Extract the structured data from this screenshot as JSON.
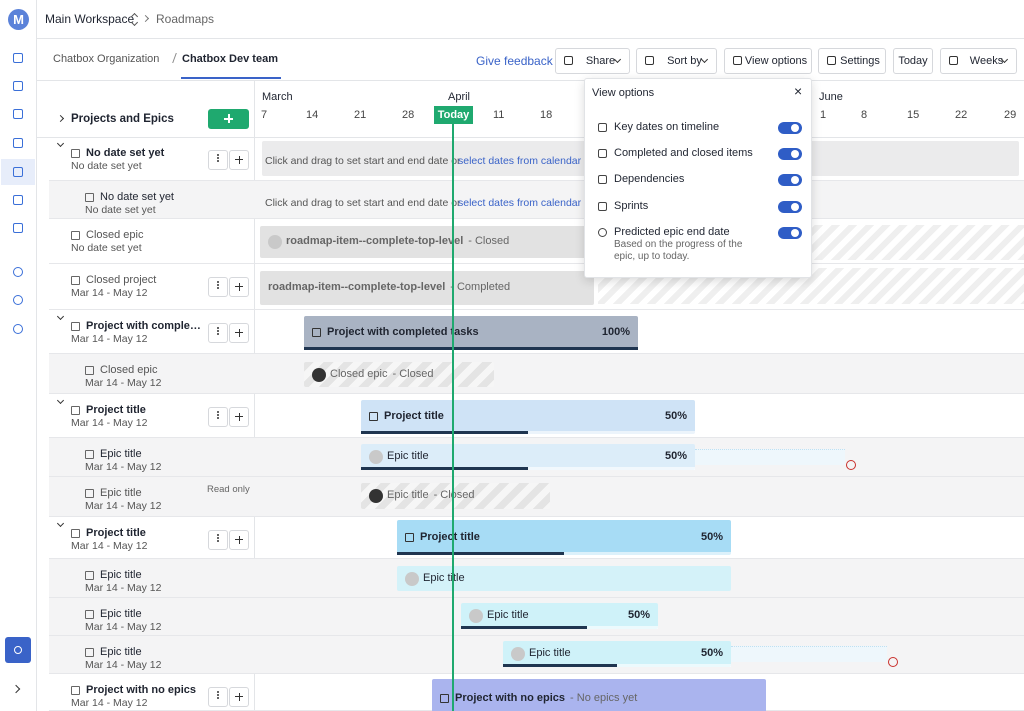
{
  "breadcrumb": {
    "workspace": "Main Workspace",
    "page": "Roadmaps"
  },
  "logo": "M",
  "tabs": [
    "Chatbox Organization",
    "Chatbox Dev team"
  ],
  "toolbar": {
    "feedback": "Give feedback",
    "share": "Share",
    "sort": "Sort by",
    "view_options": "View options",
    "settings": "Settings",
    "today": "Today",
    "weeks": "Weeks"
  },
  "tree_header": "Projects and Epics",
  "timeline": {
    "months": [
      "March",
      "April",
      "June"
    ],
    "days": [
      "7",
      "14",
      "21",
      "28",
      "11",
      "18",
      "1",
      "8",
      "15",
      "22",
      "29"
    ],
    "today": "Today"
  },
  "placeholder": {
    "text": "Click and drag to set start and end date or",
    "link": "select dates from calendar"
  },
  "rows": [
    {
      "title": "No date set yet",
      "dates": "No date set yet"
    },
    {
      "title": "No date set yet",
      "dates": "No date set yet"
    },
    {
      "title": "Closed epic",
      "dates": "No date set yet",
      "bar": "roadmap-item--complete-top-level",
      "suffix": "- Closed"
    },
    {
      "title": "Closed project",
      "dates": "Mar 14 - May 12",
      "bar": "roadmap-item--complete-top-level",
      "suffix": "- Completed"
    },
    {
      "title": "Project with comple…",
      "dates": "Mar 14 - May 12",
      "bar": "Project with completed tasks",
      "percent": "100%"
    },
    {
      "title": "Closed epic",
      "dates": "Mar 14 - May 12",
      "bar": "Closed epic",
      "suffix": "- Closed"
    },
    {
      "title": "Project title",
      "dates": "Mar 14 - May 12",
      "bar": "Project title",
      "percent": "50%"
    },
    {
      "title": "Epic title",
      "dates": "Mar 14 - May 12",
      "bar": "Epic title",
      "percent": "50%"
    },
    {
      "title": "Epic title",
      "dates": "Mar 14 - May 12",
      "note": "Read only",
      "bar": "Epic title",
      "suffix": "- Closed"
    },
    {
      "title": "Project title",
      "dates": "Mar 14 - May 12",
      "bar": "Project title",
      "percent": "50%"
    },
    {
      "title": "Epic title",
      "dates": "Mar 14 - May 12",
      "bar": "Epic title"
    },
    {
      "title": "Epic title",
      "dates": "Mar 14 - May 12",
      "bar": "Epic title",
      "percent": "50%"
    },
    {
      "title": "Epic title",
      "dates": "Mar 14 - May 12",
      "bar": "Epic title",
      "percent": "50%"
    },
    {
      "title": "Project with no epics",
      "dates": "Mar 14 - May 12",
      "bar": "Project with no epics",
      "suffix": "- No epics yet"
    }
  ],
  "view_options": {
    "title": "View options",
    "close": "×",
    "items": [
      {
        "label": "Key dates on timeline"
      },
      {
        "label": "Completed and closed items"
      },
      {
        "label": "Dependencies"
      },
      {
        "label": "Sprints"
      },
      {
        "label": "Predicted epic end date",
        "description": "Based on the progress of the epic, up to today."
      }
    ]
  }
}
